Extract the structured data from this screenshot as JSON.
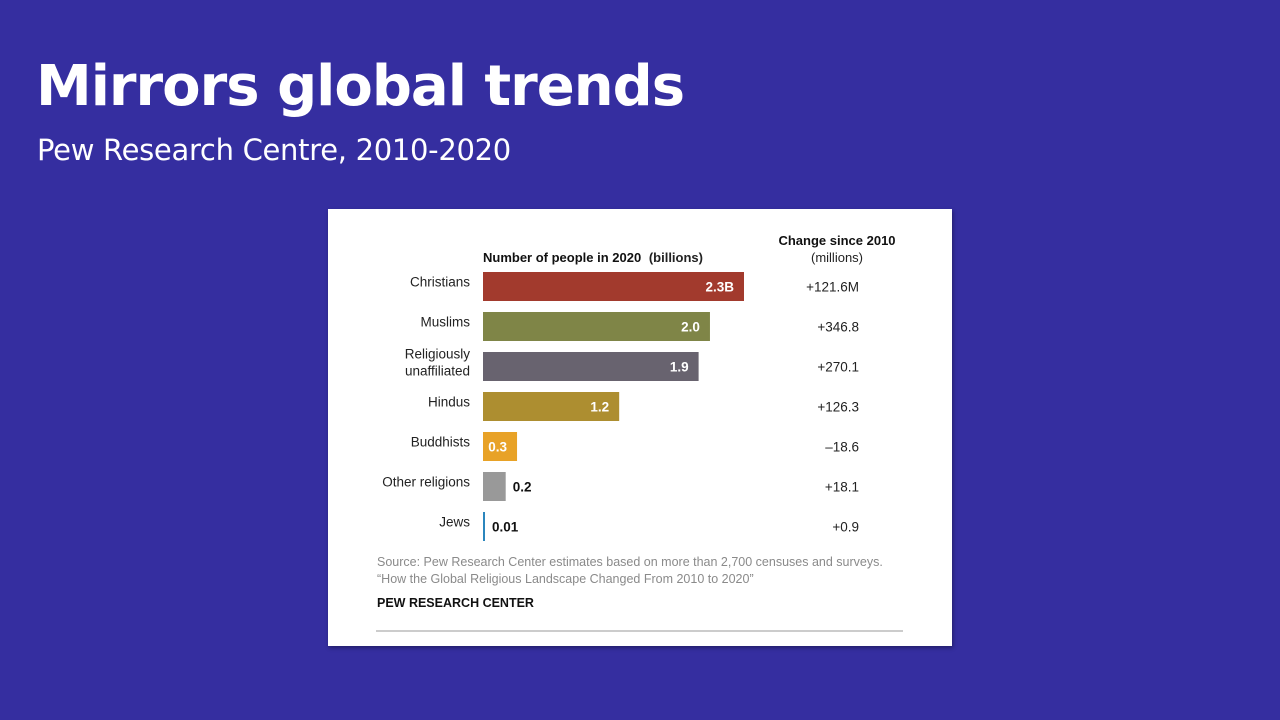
{
  "slide": {
    "title": "Mirrors global trends",
    "subtitle": "Pew Research Centre, 2010-2020"
  },
  "chart_data": {
    "type": "bar",
    "orientation": "horizontal",
    "header_bold": "Number of people in 2020",
    "header_unit": "(billions)",
    "change_header": "Change since 2010",
    "change_unit": "(millions)",
    "categories": [
      [
        "Christians"
      ],
      [
        "Muslims"
      ],
      [
        "Religiously",
        "unaffiliated"
      ],
      [
        "Hindus"
      ],
      [
        "Buddhists"
      ],
      [
        "Other religions"
      ],
      [
        "Jews"
      ]
    ],
    "values": [
      2.3,
      2.0,
      1.9,
      1.2,
      0.3,
      0.2,
      0.01
    ],
    "value_labels": [
      "2.3B",
      "2.0",
      "1.9",
      "1.2",
      "0.3",
      "0.2",
      "0.01"
    ],
    "changes": [
      "+121.6M",
      "+346.8",
      "+270.1",
      "+126.3",
      "–18.6",
      "+18.1",
      "+0.9"
    ],
    "colors": [
      "#a23a2d",
      "#7f8547",
      "#68636f",
      "#ad8e30",
      "#e8a227",
      "#999999",
      "#2b86bd"
    ],
    "xlim": [
      0,
      2.3
    ],
    "source_lines": [
      "Source: Pew Research Center estimates based on more than 2,700 censuses and surveys.",
      "“How the Global Religious Landscape Changed From 2010 to 2020”"
    ],
    "brand": "PEW RESEARCH CENTER"
  }
}
